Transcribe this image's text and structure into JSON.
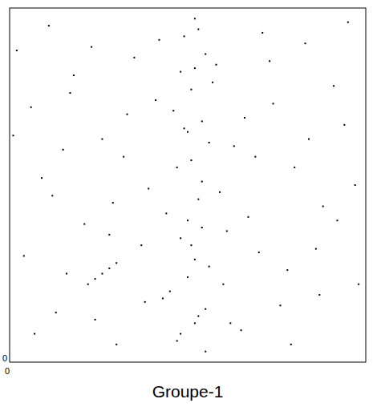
{
  "chart_data": {
    "type": "scatter",
    "x_label": "Groupe-1",
    "xlim": [
      0,
      100
    ],
    "ylim": [
      0,
      100
    ],
    "xticks": [
      0
    ],
    "yticks": [
      0
    ],
    "grid": false,
    "color": "#000000",
    "marker": "square",
    "x": [
      2,
      6,
      11,
      15,
      18,
      24,
      29,
      33,
      37,
      42,
      45,
      47,
      48,
      49,
      50,
      51,
      52,
      53,
      54,
      55,
      56,
      58,
      61,
      65,
      69,
      74,
      78,
      83,
      88,
      94,
      4,
      9,
      13,
      17,
      21,
      26,
      30,
      35,
      39,
      43,
      46,
      48,
      49,
      50,
      51,
      52,
      52,
      53,
      54,
      55,
      57,
      60,
      63,
      67,
      71,
      76,
      80,
      86,
      91,
      97,
      1,
      7,
      12,
      16,
      23,
      28,
      32,
      38,
      41,
      44,
      47,
      48,
      50,
      51,
      52,
      53,
      54,
      55,
      56,
      59,
      62,
      66,
      70,
      73,
      79,
      84,
      87,
      92,
      95,
      98,
      22,
      24,
      26,
      28,
      30
    ],
    "values": [
      88,
      72,
      95,
      60,
      81,
      12,
      45,
      70,
      33,
      91,
      20,
      55,
      8,
      66,
      40,
      77,
      29,
      94,
      51,
      15,
      62,
      84,
      37,
      9,
      58,
      73,
      26,
      90,
      44,
      67,
      30,
      52,
      14,
      76,
      39,
      63,
      5,
      86,
      49,
      18,
      71,
      35,
      92,
      24,
      57,
      11,
      83,
      46,
      68,
      3,
      79,
      22,
      61,
      41,
      93,
      16,
      55,
      32,
      78,
      50,
      64,
      8,
      47,
      25,
      89,
      36,
      58,
      17,
      74,
      42,
      6,
      82,
      65,
      33,
      97,
      13,
      38,
      87,
      27,
      48,
      11,
      69,
      31,
      85,
      5,
      63,
      19,
      40,
      96,
      22,
      22,
      23.5,
      25,
      26.5,
      28
    ]
  }
}
